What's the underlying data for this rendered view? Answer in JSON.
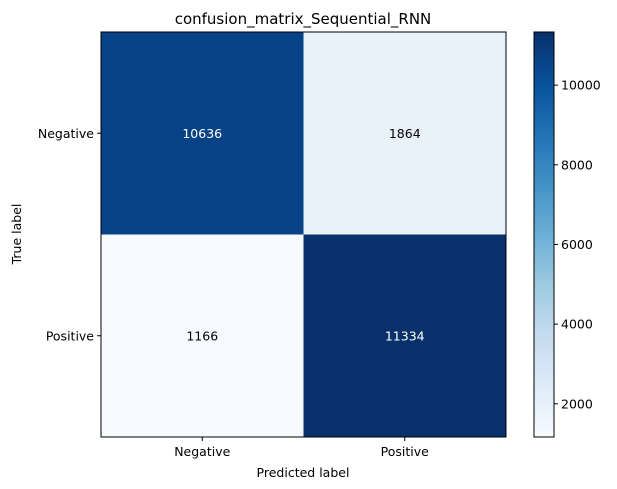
{
  "chart_data": {
    "type": "heatmap",
    "title": "confusion_matrix_Sequential_RNN",
    "xlabel": "Predicted label",
    "ylabel": "True label",
    "x_categories": [
      "Negative",
      "Positive"
    ],
    "y_categories": [
      "Negative",
      "Positive"
    ],
    "values": [
      [
        10636,
        1864
      ],
      [
        1166,
        11334
      ]
    ],
    "colorscale": "Blues",
    "colorbar": {
      "min": 1166,
      "max": 11334,
      "ticks": [
        2000,
        4000,
        6000,
        8000,
        10000
      ]
    },
    "colors": {
      "low": "#f7fbff",
      "high": "#08306b",
      "text_dark": "#000000",
      "text_light": "#ffffff"
    }
  }
}
